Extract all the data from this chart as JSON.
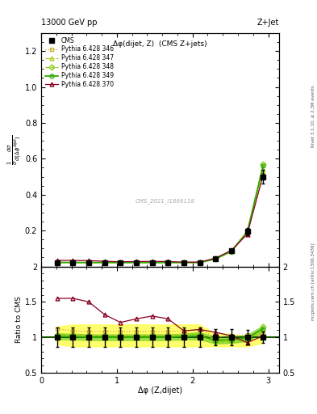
{
  "title_left": "13000 GeV pp",
  "title_right": "Z+Jet",
  "plot_title": "Δφ(dijet, Z)  (CMS Z+jets)",
  "xlabel": "Δφ (Z,dijet)",
  "ylabel_main": "           ",
  "ylabel_ratio": "Ratio to CMS",
  "right_label_top": "Rivet 3.1.10, ≥ 2.3M events",
  "right_label_bot": "mcplots.cern.ch [arXiv:1306.3436]",
  "watermark": "CMS_2021_I1866118",
  "cms_x": [
    0.2094,
    0.4189,
    0.6283,
    0.8378,
    1.0472,
    1.2566,
    1.4661,
    1.6755,
    1.885,
    2.0944,
    2.3038,
    2.5133,
    2.7227,
    2.9322
  ],
  "cms_y": [
    0.022,
    0.022,
    0.022,
    0.022,
    0.022,
    0.022,
    0.022,
    0.022,
    0.022,
    0.022,
    0.044,
    0.088,
    0.195,
    0.5
  ],
  "cms_yerr": [
    0.003,
    0.003,
    0.003,
    0.003,
    0.003,
    0.003,
    0.003,
    0.003,
    0.003,
    0.003,
    0.005,
    0.01,
    0.02,
    0.04
  ],
  "py346_y": [
    0.0247,
    0.024,
    0.0238,
    0.0238,
    0.0238,
    0.0238,
    0.0238,
    0.0238,
    0.024,
    0.0244,
    0.044,
    0.09,
    0.2,
    0.51
  ],
  "py347_y": [
    0.0232,
    0.0228,
    0.0226,
    0.0226,
    0.0226,
    0.0226,
    0.0226,
    0.0226,
    0.0228,
    0.0232,
    0.043,
    0.086,
    0.192,
    0.54
  ],
  "py348_y": [
    0.0228,
    0.0226,
    0.0224,
    0.0224,
    0.0224,
    0.0224,
    0.0224,
    0.0224,
    0.0226,
    0.0228,
    0.041,
    0.083,
    0.188,
    0.572
  ],
  "py349_y": [
    0.0222,
    0.0222,
    0.022,
    0.022,
    0.022,
    0.022,
    0.022,
    0.022,
    0.0222,
    0.0224,
    0.042,
    0.085,
    0.193,
    0.56
  ],
  "py370_y": [
    0.034,
    0.034,
    0.033,
    0.029,
    0.0265,
    0.0278,
    0.0285,
    0.0278,
    0.024,
    0.0244,
    0.047,
    0.09,
    0.18,
    0.51
  ],
  "ratio_346": [
    1.12,
    1.09,
    1.08,
    1.08,
    1.08,
    1.08,
    1.08,
    1.08,
    1.09,
    1.11,
    1.0,
    1.02,
    1.03,
    1.02
  ],
  "ratio_347": [
    1.05,
    1.04,
    1.03,
    1.03,
    1.03,
    1.03,
    1.03,
    1.03,
    1.04,
    1.05,
    0.98,
    0.98,
    0.985,
    1.08
  ],
  "ratio_348": [
    1.04,
    1.03,
    1.02,
    1.02,
    1.02,
    1.02,
    1.02,
    1.02,
    1.03,
    1.04,
    0.93,
    0.94,
    0.964,
    1.144
  ],
  "ratio_349": [
    1.01,
    1.01,
    1.0,
    1.0,
    1.0,
    1.0,
    1.0,
    1.0,
    1.01,
    1.02,
    0.955,
    0.966,
    0.99,
    1.12
  ],
  "ratio_370": [
    1.55,
    1.55,
    1.5,
    1.32,
    1.21,
    1.26,
    1.3,
    1.26,
    1.09,
    1.11,
    1.07,
    1.02,
    0.923,
    1.02
  ],
  "band_yellow_low": [
    0.9,
    0.87,
    0.87,
    0.87,
    0.87,
    0.87,
    0.87,
    0.87,
    0.87,
    0.87,
    0.87,
    0.87,
    0.87,
    0.92
  ],
  "band_yellow_high": [
    1.15,
    1.18,
    1.18,
    1.18,
    1.18,
    1.18,
    1.18,
    1.18,
    1.18,
    1.18,
    1.05,
    1.05,
    1.0,
    1.15
  ],
  "band_green_low": [
    0.97,
    0.97,
    0.96,
    0.96,
    0.96,
    0.96,
    0.96,
    0.96,
    0.97,
    0.97,
    0.91,
    0.92,
    0.945,
    1.075
  ],
  "band_green_high": [
    1.05,
    1.05,
    1.04,
    1.04,
    1.04,
    1.04,
    1.04,
    1.04,
    1.05,
    1.07,
    1.0,
    1.01,
    1.035,
    1.165
  ],
  "color_346": "#ccaa33",
  "color_347": "#aacc22",
  "color_348": "#88cc11",
  "color_349": "#33aa00",
  "color_370": "#880022",
  "xlim": [
    0,
    3.14159
  ],
  "ylim_main": [
    0,
    1.3
  ],
  "ylim_ratio": [
    0.5,
    2.0
  ],
  "yticks_main": [
    0.2,
    0.4,
    0.6,
    0.8,
    1.0,
    1.2
  ],
  "yticks_ratio": [
    0.5,
    1.0,
    1.5,
    2.0
  ],
  "xticks": [
    0,
    1,
    2,
    3
  ]
}
